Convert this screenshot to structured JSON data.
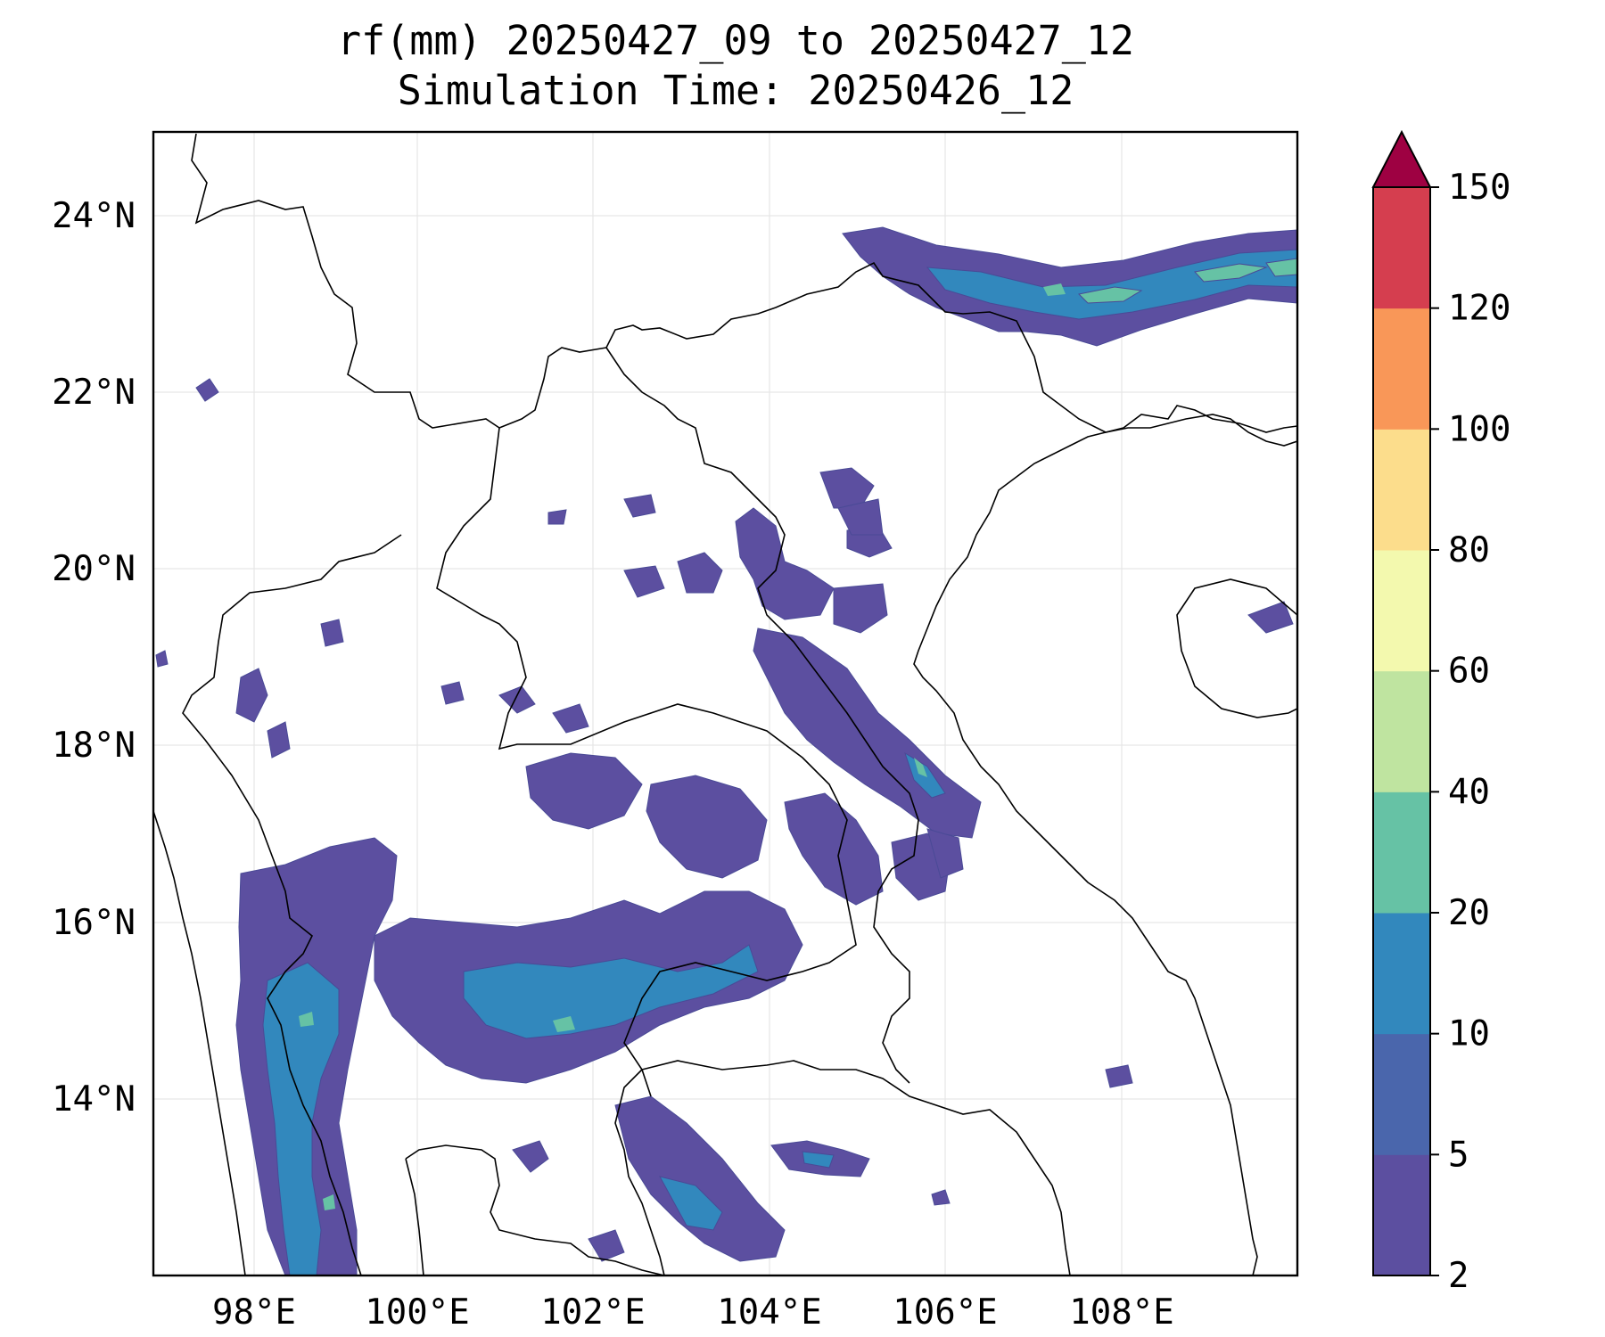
{
  "title": {
    "line1": "rf(mm) 20250427_09 to 20250427_12",
    "line2": "Simulation Time: 20250426_12"
  },
  "map": {
    "lon_range": [
      97,
      110
    ],
    "lat_range": [
      12,
      25
    ],
    "lon_ticks": [
      "98°E",
      "100°E",
      "102°E",
      "104°E",
      "106°E",
      "108°E"
    ],
    "lat_ticks": [
      "24°N",
      "22°N",
      "20°N",
      "18°N",
      "16°N",
      "14°N"
    ],
    "grid": true
  },
  "colorbar": {
    "levels": [
      "2",
      "5",
      "10",
      "20",
      "40",
      "60",
      "80",
      "100",
      "120",
      "150"
    ],
    "colors": [
      "#5c4fa0",
      "#4a66ac",
      "#3288bd",
      "#66c2a5",
      "#bfe4a0",
      "#f3f9ae",
      "#fcdd8c",
      "#f99758",
      "#d53e4f",
      "#9e0142"
    ],
    "extend": "max"
  }
}
